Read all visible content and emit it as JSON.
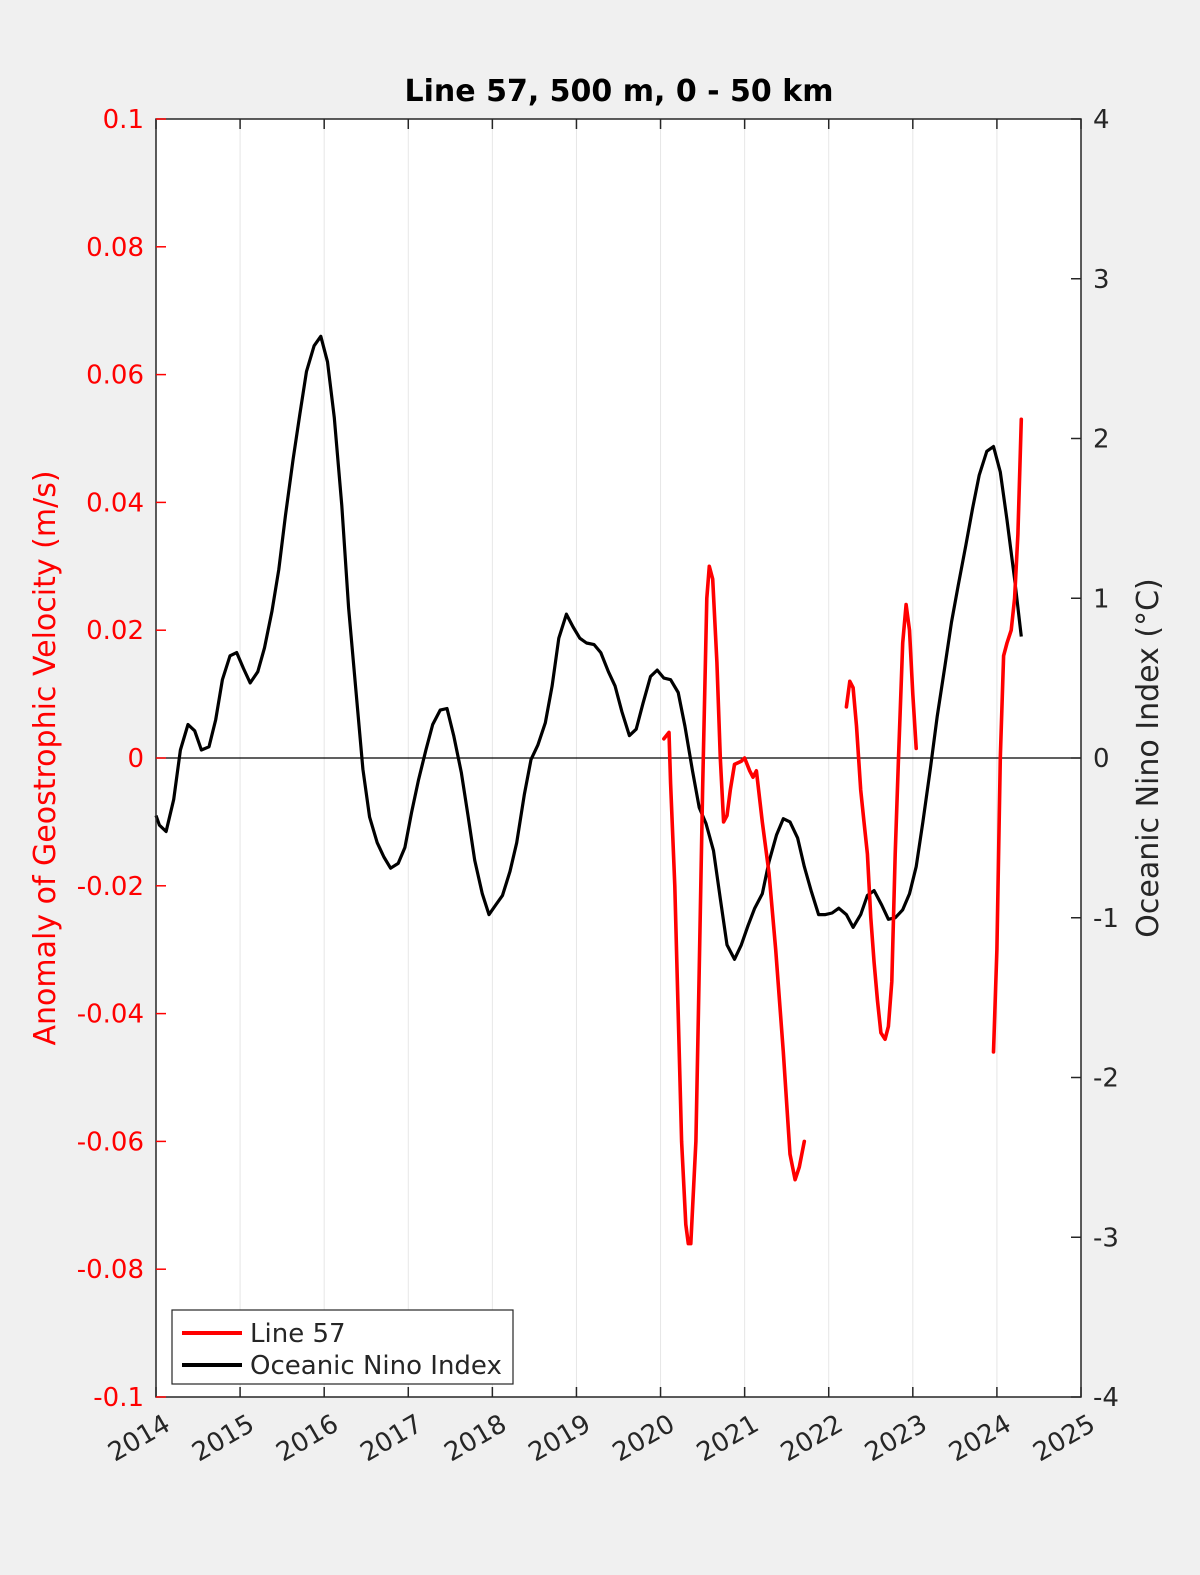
{
  "chart_data": {
    "type": "line",
    "title": "Line 57, 500 m, 0 - 50 km",
    "ylabel_left": "Anomaly of Geostrophic Velocity (m/s)",
    "ylabel_right": "Oceanic Nino Index (°C)",
    "xlim": [
      2014,
      2025
    ],
    "ylim_left": [
      -0.1,
      0.1
    ],
    "ylim_right": [
      -4,
      4
    ],
    "x_ticks": [
      "2014",
      "2015",
      "2016",
      "2017",
      "2018",
      "2019",
      "2020",
      "2021",
      "2022",
      "2023",
      "2024",
      "2025"
    ],
    "y_left_ticks": [
      "0.1",
      "0.08",
      "0.06",
      "0.04",
      "0.02",
      "0",
      "-0.02",
      "-0.04",
      "-0.06",
      "-0.08",
      "-0.1"
    ],
    "y_right_ticks": [
      "4",
      "3",
      "2",
      "1",
      "0",
      "-1",
      "-2",
      "-3",
      "-4"
    ],
    "grid": "vertical",
    "zero_line": true,
    "legend_position": "bottom-left",
    "colors": {
      "line57": "#ff0000",
      "oni": "#000000",
      "left_axis": "#ff0000",
      "right_axis": "#000000"
    },
    "series": [
      {
        "name": "Line 57",
        "axis": "left",
        "color": "#ff0000",
        "segments": [
          [
            [
              2020.04,
              0.003
            ],
            [
              2020.1,
              0.004
            ],
            [
              2020.12,
              -0.004
            ],
            [
              2020.17,
              -0.02
            ],
            [
              2020.21,
              -0.04
            ],
            [
              2020.25,
              -0.06
            ],
            [
              2020.3,
              -0.073
            ],
            [
              2020.33,
              -0.076
            ],
            [
              2020.36,
              -0.076
            ],
            [
              2020.42,
              -0.06
            ],
            [
              2020.45,
              -0.04
            ],
            [
              2020.5,
              -0.005
            ],
            [
              2020.55,
              0.025
            ],
            [
              2020.58,
              0.03
            ],
            [
              2020.62,
              0.028
            ],
            [
              2020.67,
              0.015
            ],
            [
              2020.71,
              0.0
            ],
            [
              2020.75,
              -0.01
            ],
            [
              2020.79,
              -0.009
            ],
            [
              2020.83,
              -0.005
            ],
            [
              2020.88,
              -0.001
            ],
            [
              2020.96,
              -0.0005
            ],
            [
              2021.0,
              0.0
            ],
            [
              2021.06,
              -0.002
            ],
            [
              2021.1,
              -0.003
            ],
            [
              2021.14,
              -0.002
            ],
            [
              2021.21,
              -0.01
            ],
            [
              2021.29,
              -0.018
            ],
            [
              2021.37,
              -0.03
            ],
            [
              2021.46,
              -0.046
            ],
            [
              2021.54,
              -0.062
            ],
            [
              2021.6,
              -0.066
            ],
            [
              2021.65,
              -0.064
            ],
            [
              2021.71,
              -0.06
            ]
          ],
          [
            [
              2022.21,
              0.008
            ],
            [
              2022.25,
              0.012
            ],
            [
              2022.29,
              0.011
            ],
            [
              2022.33,
              0.005
            ],
            [
              2022.38,
              -0.005
            ],
            [
              2022.42,
              -0.01
            ],
            [
              2022.46,
              -0.015
            ],
            [
              2022.5,
              -0.025
            ],
            [
              2022.54,
              -0.032
            ],
            [
              2022.58,
              -0.038
            ],
            [
              2022.62,
              -0.043
            ],
            [
              2022.67,
              -0.044
            ],
            [
              2022.71,
              -0.042
            ],
            [
              2022.75,
              -0.035
            ],
            [
              2022.79,
              -0.015
            ],
            [
              2022.83,
              0.0
            ],
            [
              2022.88,
              0.018
            ],
            [
              2022.92,
              0.024
            ],
            [
              2022.96,
              0.02
            ],
            [
              2023.0,
              0.01
            ],
            [
              2023.04,
              0.0015
            ]
          ],
          [
            [
              2023.96,
              -0.046
            ],
            [
              2024.0,
              -0.03
            ],
            [
              2024.04,
              0.0
            ],
            [
              2024.08,
              0.016
            ],
            [
              2024.12,
              0.018
            ],
            [
              2024.17,
              0.02
            ],
            [
              2024.21,
              0.025
            ],
            [
              2024.25,
              0.035
            ],
            [
              2024.29,
              0.053
            ]
          ]
        ]
      },
      {
        "name": "Oceanic Nino Index",
        "axis": "right",
        "color": "#000000",
        "points": [
          [
            2014.0,
            -0.36
          ],
          [
            2014.04,
            -0.42
          ],
          [
            2014.12,
            -0.46
          ],
          [
            2014.21,
            -0.26
          ],
          [
            2014.29,
            0.05
          ],
          [
            2014.38,
            0.21
          ],
          [
            2014.46,
            0.17
          ],
          [
            2014.54,
            0.05
          ],
          [
            2014.63,
            0.07
          ],
          [
            2014.71,
            0.24
          ],
          [
            2014.79,
            0.49
          ],
          [
            2014.88,
            0.64
          ],
          [
            2014.96,
            0.66
          ],
          [
            2015.04,
            0.56
          ],
          [
            2015.12,
            0.47
          ],
          [
            2015.21,
            0.54
          ],
          [
            2015.29,
            0.69
          ],
          [
            2015.38,
            0.92
          ],
          [
            2015.46,
            1.18
          ],
          [
            2015.54,
            1.52
          ],
          [
            2015.63,
            1.87
          ],
          [
            2015.71,
            2.15
          ],
          [
            2015.79,
            2.42
          ],
          [
            2015.88,
            2.58
          ],
          [
            2015.96,
            2.64
          ],
          [
            2016.04,
            2.48
          ],
          [
            2016.12,
            2.13
          ],
          [
            2016.21,
            1.58
          ],
          [
            2016.29,
            0.94
          ],
          [
            2016.38,
            0.41
          ],
          [
            2016.46,
            -0.07
          ],
          [
            2016.54,
            -0.37
          ],
          [
            2016.63,
            -0.53
          ],
          [
            2016.71,
            -0.62
          ],
          [
            2016.79,
            -0.69
          ],
          [
            2016.88,
            -0.66
          ],
          [
            2016.96,
            -0.56
          ],
          [
            2017.04,
            -0.34
          ],
          [
            2017.12,
            -0.14
          ],
          [
            2017.21,
            0.05
          ],
          [
            2017.29,
            0.21
          ],
          [
            2017.38,
            0.3
          ],
          [
            2017.46,
            0.31
          ],
          [
            2017.54,
            0.14
          ],
          [
            2017.63,
            -0.09
          ],
          [
            2017.71,
            -0.36
          ],
          [
            2017.79,
            -0.64
          ],
          [
            2017.88,
            -0.85
          ],
          [
            2017.96,
            -0.98
          ],
          [
            2018.04,
            -0.92
          ],
          [
            2018.12,
            -0.86
          ],
          [
            2018.21,
            -0.71
          ],
          [
            2018.29,
            -0.53
          ],
          [
            2018.38,
            -0.23
          ],
          [
            2018.46,
            -0.01
          ],
          [
            2018.54,
            0.08
          ],
          [
            2018.63,
            0.22
          ],
          [
            2018.71,
            0.45
          ],
          [
            2018.79,
            0.75
          ],
          [
            2018.88,
            0.9
          ],
          [
            2018.96,
            0.82
          ],
          [
            2019.04,
            0.75
          ],
          [
            2019.12,
            0.72
          ],
          [
            2019.21,
            0.71
          ],
          [
            2019.29,
            0.66
          ],
          [
            2019.38,
            0.54
          ],
          [
            2019.46,
            0.45
          ],
          [
            2019.54,
            0.29
          ],
          [
            2019.63,
            0.14
          ],
          [
            2019.71,
            0.18
          ],
          [
            2019.79,
            0.34
          ],
          [
            2019.88,
            0.51
          ],
          [
            2019.96,
            0.55
          ],
          [
            2020.04,
            0.5
          ],
          [
            2020.12,
            0.49
          ],
          [
            2020.21,
            0.41
          ],
          [
            2020.29,
            0.2
          ],
          [
            2020.38,
            -0.08
          ],
          [
            2020.46,
            -0.31
          ],
          [
            2020.54,
            -0.41
          ],
          [
            2020.63,
            -0.58
          ],
          [
            2020.71,
            -0.88
          ],
          [
            2020.79,
            -1.17
          ],
          [
            2020.88,
            -1.26
          ],
          [
            2020.96,
            -1.17
          ],
          [
            2021.04,
            -1.05
          ],
          [
            2021.12,
            -0.94
          ],
          [
            2021.21,
            -0.85
          ],
          [
            2021.29,
            -0.65
          ],
          [
            2021.38,
            -0.48
          ],
          [
            2021.46,
            -0.38
          ],
          [
            2021.54,
            -0.4
          ],
          [
            2021.63,
            -0.5
          ],
          [
            2021.71,
            -0.68
          ],
          [
            2021.79,
            -0.83
          ],
          [
            2021.88,
            -0.98
          ],
          [
            2021.96,
            -0.98
          ],
          [
            2022.04,
            -0.97
          ],
          [
            2022.12,
            -0.94
          ],
          [
            2022.21,
            -0.98
          ],
          [
            2022.29,
            -1.06
          ],
          [
            2022.38,
            -0.98
          ],
          [
            2022.46,
            -0.86
          ],
          [
            2022.54,
            -0.83
          ],
          [
            2022.63,
            -0.92
          ],
          [
            2022.71,
            -1.01
          ],
          [
            2022.79,
            -1.0
          ],
          [
            2022.88,
            -0.95
          ],
          [
            2022.96,
            -0.85
          ],
          [
            2023.04,
            -0.68
          ],
          [
            2023.12,
            -0.4
          ],
          [
            2023.21,
            -0.06
          ],
          [
            2023.29,
            0.26
          ],
          [
            2023.38,
            0.57
          ],
          [
            2023.46,
            0.85
          ],
          [
            2023.54,
            1.08
          ],
          [
            2023.63,
            1.33
          ],
          [
            2023.71,
            1.56
          ],
          [
            2023.79,
            1.77
          ],
          [
            2023.88,
            1.92
          ],
          [
            2023.96,
            1.95
          ],
          [
            2024.04,
            1.79
          ],
          [
            2024.12,
            1.49
          ],
          [
            2024.21,
            1.12
          ],
          [
            2024.29,
            0.76
          ]
        ]
      }
    ]
  }
}
